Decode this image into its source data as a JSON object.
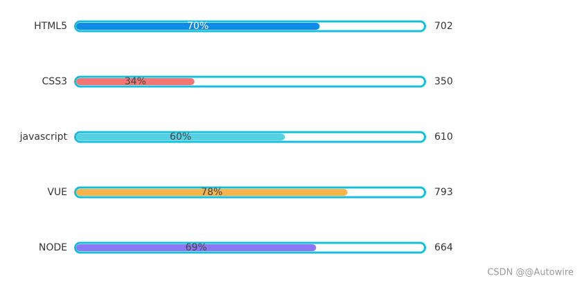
{
  "chart_data": {
    "type": "progress-bar",
    "categories": [
      "HTML5",
      "CSS3",
      "javascript",
      "VUE",
      "NODE"
    ],
    "values": [
      70,
      34,
      60,
      78,
      69
    ],
    "value_labels": [
      "70%",
      "34%",
      "60%",
      "78%",
      "69%"
    ],
    "totals": [
      702,
      350,
      610,
      793,
      664
    ],
    "colors": [
      "#1089e7",
      "#f57474",
      "#56d0e3",
      "#f8b448",
      "#8b78f6"
    ],
    "frame_color": "#14bfd9",
    "xlim": [
      0,
      100
    ]
  },
  "watermark": "CSDN @@Autowire"
}
